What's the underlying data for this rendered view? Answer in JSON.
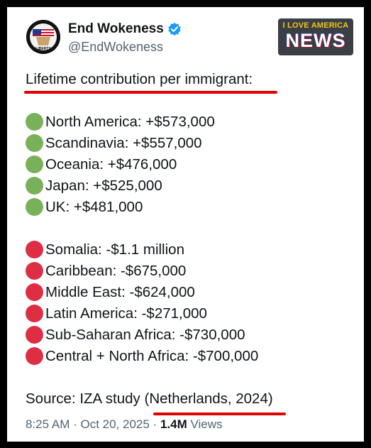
{
  "tweet": {
    "display_name": "End Wokeness",
    "handle": "@EndWokeness",
    "heading": "Lifetime contribution per immigrant:",
    "positive": [
      "North America: +$573,000",
      "Scandinavia: +$557,000",
      "Oceania: +$476,000",
      "Japan: +$525,000",
      "UK: +$481,000"
    ],
    "negative": [
      "Somalia: -$1.1 million",
      "Caribbean: -$675,000",
      "Middle East: -$624,000",
      "Latin America: -$271,000",
      "Sub-Saharan Africa: -$730,000",
      "Central + North Africa: -$700,000"
    ],
    "source_prefix": "Source: IZA study (",
    "source_highlight": "Netherlands, 2024",
    "source_suffix": ")",
    "timestamp": "8:25 AM · Oct 20, 2025 · ",
    "views_count": "1.4M",
    "views_label": " Views"
  },
  "watermark": {
    "line1": "I LOVE AMERICA",
    "line2": "NEWS"
  },
  "avatar_text": "LIBERTY",
  "icons": {
    "verified": "verified-badge-icon",
    "positive": "green-circle-icon",
    "negative": "red-circle-icon"
  },
  "colors": {
    "green_dot": "#78b159",
    "red_dot": "#dd2e44",
    "verified": "#1d9bf0",
    "underline": "#e00000",
    "text": "#0f1419",
    "muted": "#536471"
  }
}
